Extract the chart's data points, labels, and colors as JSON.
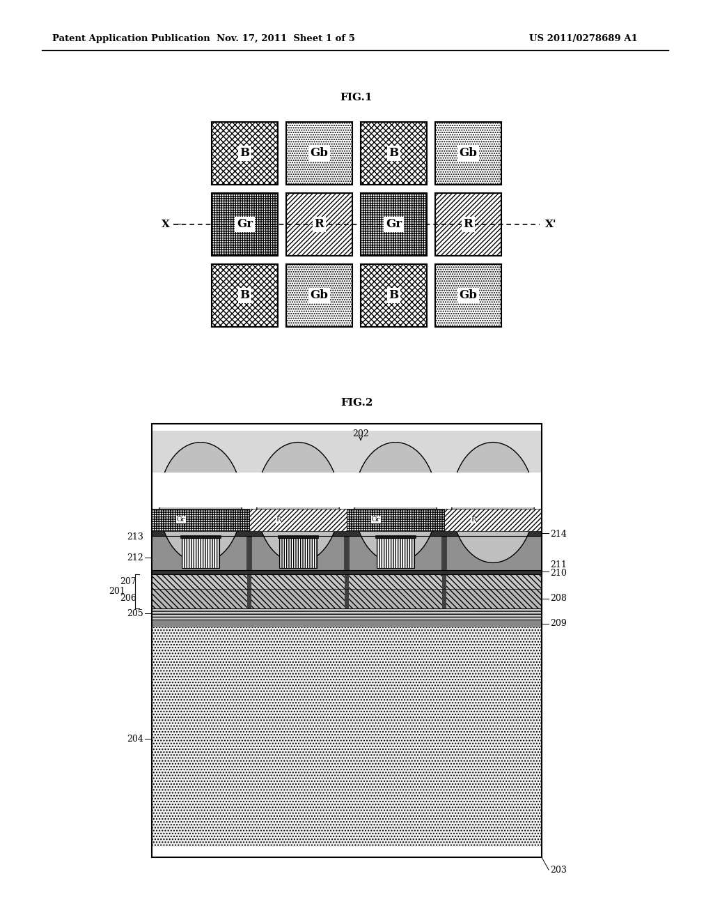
{
  "header_left": "Patent Application Publication",
  "header_mid": "Nov. 17, 2011  Sheet 1 of 5",
  "header_right": "US 2011/0278689 A1",
  "fig1_title": "FIG.1",
  "fig2_title": "FIG.2",
  "bg_color": "#ffffff"
}
